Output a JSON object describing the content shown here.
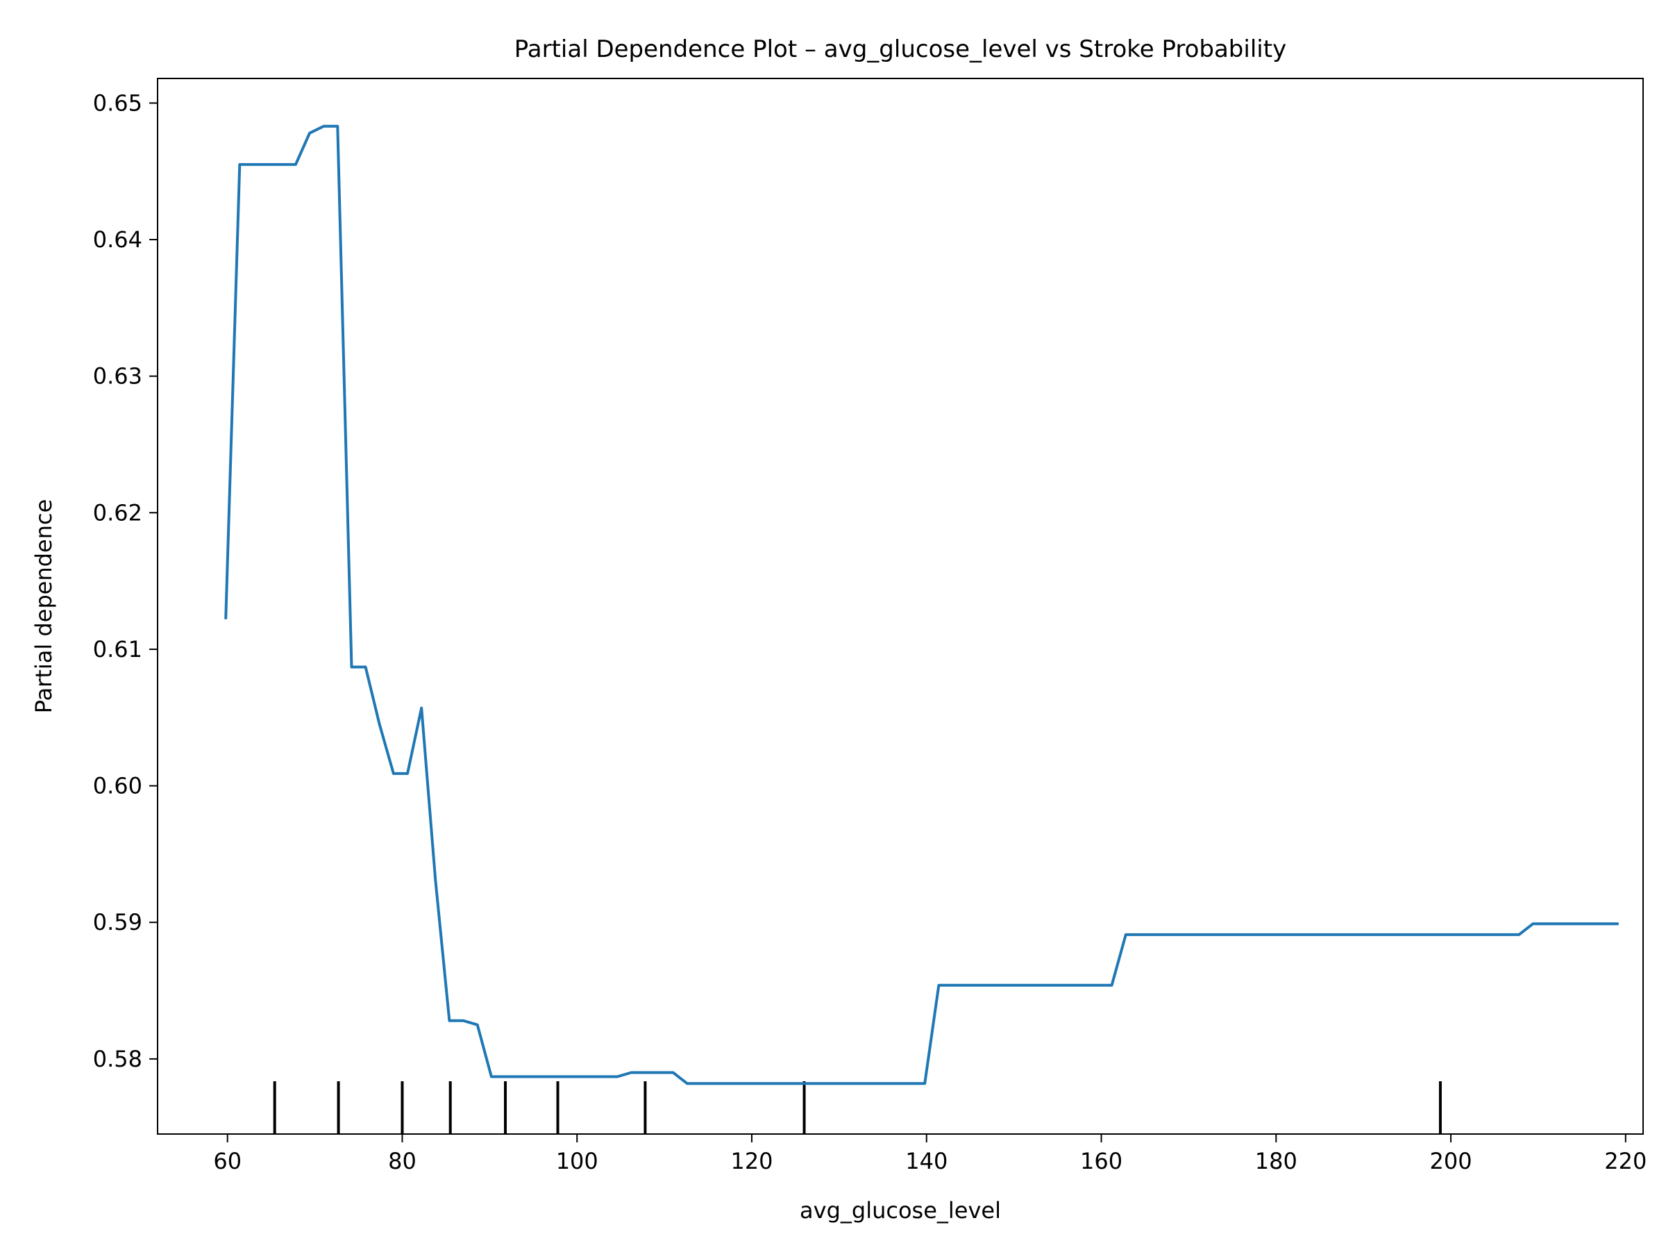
{
  "chart_data": {
    "type": "line",
    "title": "Partial Dependence Plot – avg_glucose_level vs Stroke Probability",
    "xlabel": "avg_glucose_level",
    "ylabel": "Partial dependence",
    "xlim": [
      52,
      222
    ],
    "ylim": [
      0.5745,
      0.6518
    ],
    "xticks": [
      60,
      80,
      100,
      120,
      140,
      160,
      180,
      200,
      220
    ],
    "yticks": [
      0.58,
      0.59,
      0.6,
      0.61,
      0.62,
      0.63,
      0.64,
      0.65
    ],
    "ytick_labels": [
      "0.58",
      "0.59",
      "0.60",
      "0.61",
      "0.62",
      "0.63",
      "0.64",
      "0.65"
    ],
    "grid": false,
    "line_color": "#1f77b4",
    "series": [
      {
        "x": [
          59.8,
          61.4,
          63.0,
          64.6,
          66.2,
          67.8,
          69.4,
          71.0,
          72.6,
          74.2,
          75.8,
          77.4,
          79.0,
          80.6,
          82.2,
          83.8,
          85.4,
          87.0,
          88.6,
          90.2,
          91.8,
          93.4,
          95.0,
          96.6,
          98.2,
          99.8,
          101.4,
          103.0,
          104.6,
          106.2,
          107.8,
          109.4,
          111.0,
          112.6,
          114.2,
          115.8,
          117.4,
          119.0,
          120.6,
          122.2,
          123.8,
          125.4,
          127.0,
          128.6,
          130.2,
          131.8,
          133.4,
          135.0,
          136.6,
          138.2,
          139.8,
          141.4,
          143.0,
          161.2,
          162.8,
          207.8,
          209.4,
          219.2
        ],
        "y": [
          0.6122,
          0.6455,
          0.6455,
          0.6455,
          0.6455,
          0.6455,
          0.6478,
          0.6483,
          0.6483,
          0.6087,
          0.6087,
          0.6045,
          0.6009,
          0.6009,
          0.6057,
          0.5931,
          0.5828,
          0.5828,
          0.5825,
          0.5787,
          0.5787,
          0.5787,
          0.5787,
          0.5787,
          0.5787,
          0.5787,
          0.5787,
          0.5787,
          0.5787,
          0.579,
          0.579,
          0.579,
          0.579,
          0.5782,
          0.5782,
          0.5782,
          0.5782,
          0.5782,
          0.5782,
          0.5782,
          0.5782,
          0.5782,
          0.5782,
          0.5782,
          0.5782,
          0.5782,
          0.5782,
          0.5782,
          0.5782,
          0.5782,
          0.5782,
          0.5854,
          0.5854,
          0.5854,
          0.5891,
          0.5891,
          0.5899,
          0.5899
        ]
      }
    ],
    "deciles": [
      65.4,
      72.7,
      80.0,
      85.5,
      91.8,
      97.8,
      107.8,
      126.0,
      198.8
    ]
  }
}
